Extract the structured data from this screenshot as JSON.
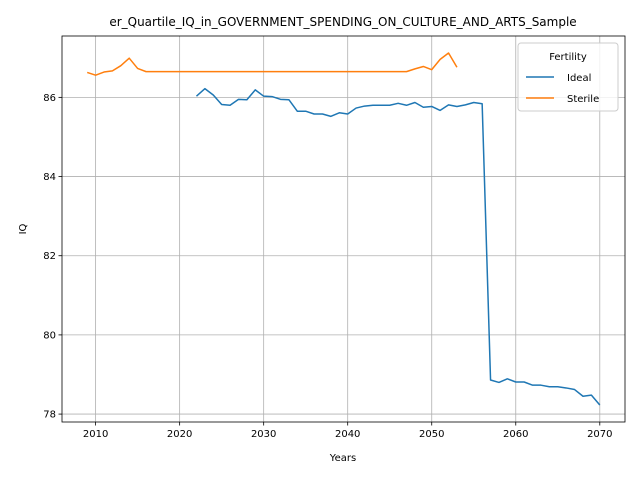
{
  "chart_data": {
    "type": "line",
    "title": "er_Quartile_IQ_in_GOVERNMENT_SPENDING_ON_CULTURE_AND_ARTS_Sample",
    "xlabel": "Years",
    "ylabel": "IQ",
    "xlim": [
      2006,
      2073
    ],
    "ylim": [
      77.8,
      87.55
    ],
    "xticks": [
      2010,
      2020,
      2030,
      2040,
      2050,
      2060,
      2070
    ],
    "yticks": [
      78,
      80,
      82,
      84,
      86
    ],
    "grid": true,
    "legend": {
      "title": "Fertility",
      "position": "top-right"
    },
    "series": [
      {
        "name": "Ideal",
        "color": "#1f77b4",
        "x": [
          2022,
          2023,
          2024,
          2025,
          2026,
          2027,
          2028,
          2029,
          2030,
          2031,
          2032,
          2033,
          2034,
          2035,
          2036,
          2037,
          2038,
          2039,
          2040,
          2041,
          2042,
          2043,
          2044,
          2045,
          2046,
          2047,
          2048,
          2049,
          2050,
          2051,
          2052,
          2053,
          2054,
          2055,
          2056,
          2057,
          2058,
          2059,
          2060,
          2061,
          2062,
          2063,
          2064,
          2065,
          2066,
          2067,
          2068,
          2069,
          2070
        ],
        "y": [
          86.03,
          86.22,
          86.06,
          85.82,
          85.8,
          85.95,
          85.94,
          86.19,
          86.03,
          86.02,
          85.95,
          85.94,
          85.65,
          85.65,
          85.58,
          85.58,
          85.52,
          85.61,
          85.58,
          85.73,
          85.78,
          85.8,
          85.8,
          85.8,
          85.85,
          85.8,
          85.87,
          85.75,
          85.77,
          85.67,
          85.81,
          85.77,
          85.81,
          85.87,
          85.84,
          78.86,
          78.8,
          78.89,
          78.81,
          78.81,
          78.73,
          78.73,
          78.69,
          78.69,
          78.66,
          78.62,
          78.45,
          78.48,
          78.23
        ]
      },
      {
        "name": "Sterile",
        "color": "#ff7f0e",
        "x": [
          2009,
          2010,
          2011,
          2012,
          2013,
          2014,
          2015,
          2016,
          2017,
          2018,
          2019,
          2020,
          2021,
          2022,
          2023,
          2024,
          2025,
          2026,
          2027,
          2028,
          2029,
          2030,
          2031,
          2032,
          2033,
          2034,
          2035,
          2036,
          2037,
          2038,
          2039,
          2040,
          2041,
          2042,
          2043,
          2044,
          2045,
          2046,
          2047,
          2048,
          2049,
          2050,
          2051,
          2052,
          2053
        ],
        "y": [
          86.63,
          86.56,
          86.64,
          86.67,
          86.8,
          86.99,
          86.73,
          86.65,
          86.65,
          86.65,
          86.65,
          86.65,
          86.65,
          86.65,
          86.65,
          86.65,
          86.65,
          86.65,
          86.65,
          86.65,
          86.65,
          86.65,
          86.65,
          86.65,
          86.65,
          86.65,
          86.65,
          86.65,
          86.65,
          86.65,
          86.65,
          86.65,
          86.65,
          86.65,
          86.65,
          86.65,
          86.65,
          86.65,
          86.65,
          86.72,
          86.78,
          86.7,
          86.96,
          87.12,
          86.76
        ]
      }
    ]
  }
}
